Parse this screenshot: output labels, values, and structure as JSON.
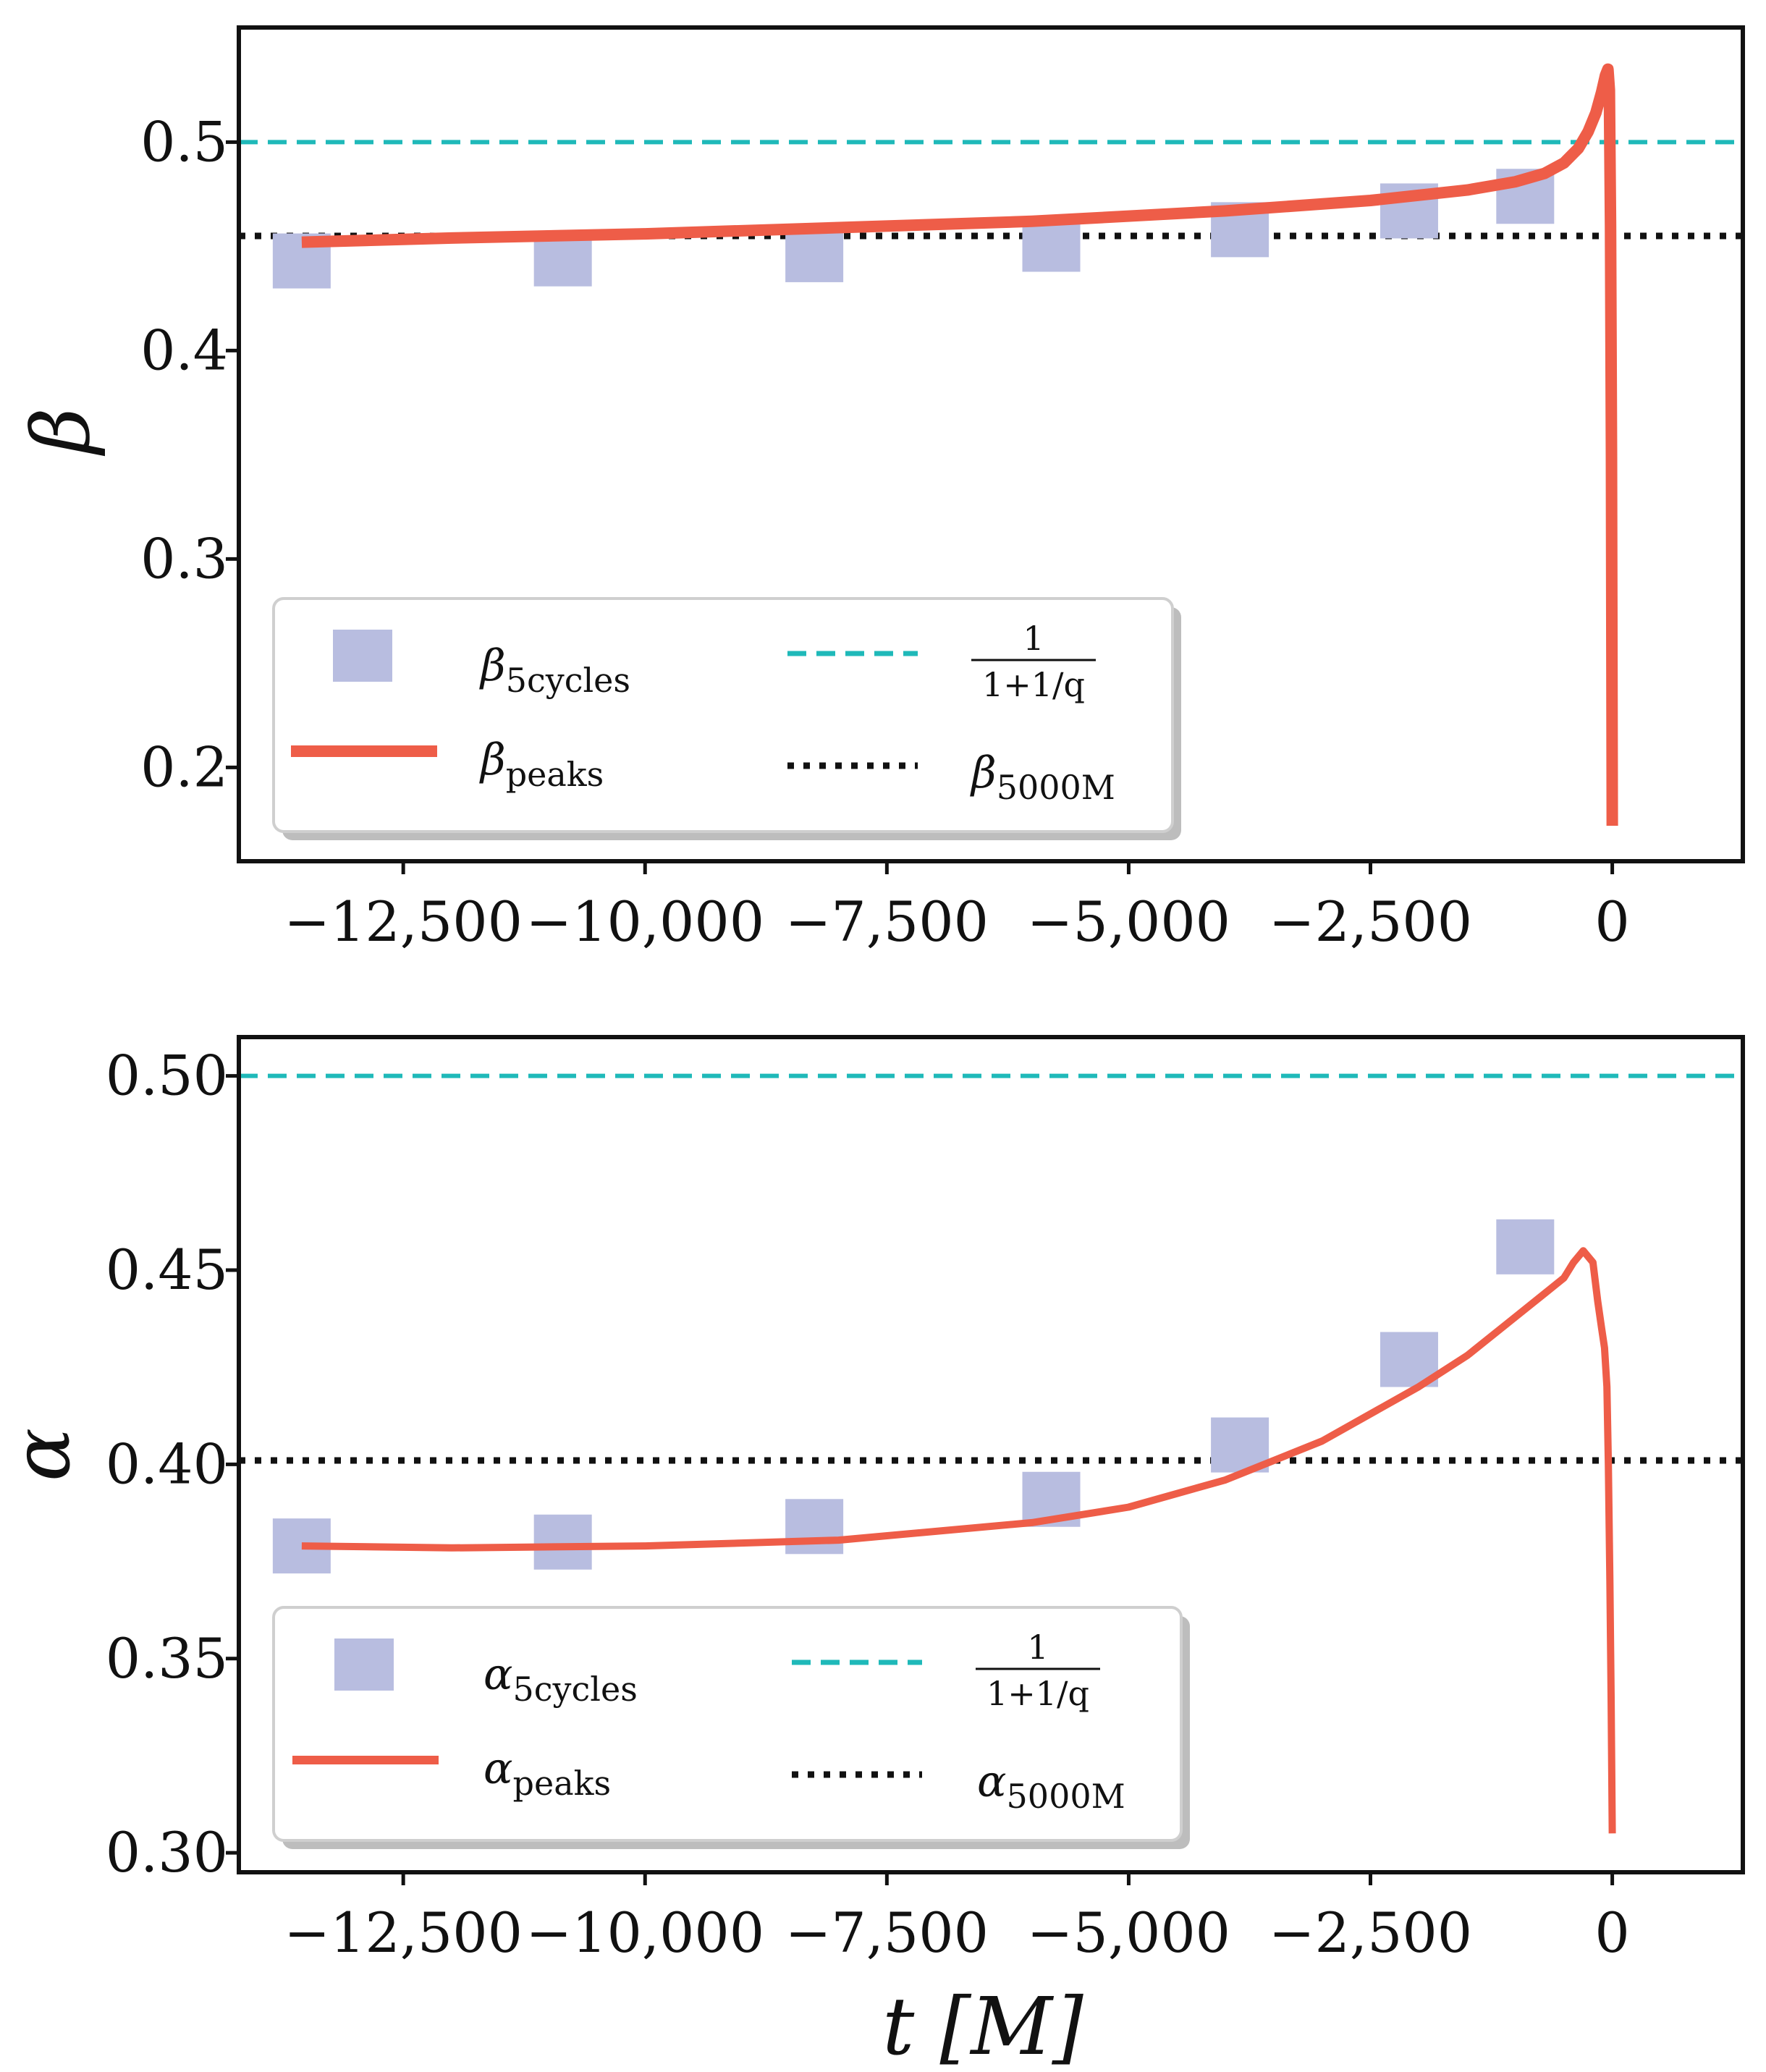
{
  "colors": {
    "series_line": "#ee5d48",
    "series_markers": "#b8bde0",
    "reference_dashed": "#1fb9b9",
    "reference_dotted": "#111111",
    "axes": "#111111",
    "legend_shadow": "#bdbdbd"
  },
  "chart_data": [
    {
      "type": "line",
      "panel": "top",
      "xlabel": "",
      "ylabel": "β",
      "xlim": [
        -14200,
        1350
      ],
      "ylim": [
        0.155,
        0.555
      ],
      "xticks": [
        -12500,
        -10000,
        -7500,
        -5000,
        -2500,
        0
      ],
      "xtick_labels": [
        "−12,500",
        "−10,000",
        "−7,500",
        "−5,000",
        "−2,500",
        "0"
      ],
      "yticks": [
        0.2,
        0.3,
        0.4,
        0.5
      ],
      "ytick_labels": [
        "0.2",
        "0.3",
        "0.4",
        "0.5"
      ],
      "grid": false,
      "legend_placement": "lower-left",
      "legend": [
        {
          "symbol": "β",
          "sub": "5cycles"
        },
        {
          "symbol": "β",
          "sub": "peaks"
        },
        {
          "frac_num": "1",
          "frac_den": "1+1/q"
        },
        {
          "symbol": "β",
          "sub": "5000M"
        }
      ],
      "series": [
        {
          "name": "β_5cycles",
          "kind": "markers",
          "x": [
            -13550,
            -10850,
            -8250,
            -5800,
            -3850,
            -2100,
            -900
          ],
          "y": [
            0.443,
            0.444,
            0.446,
            0.451,
            0.458,
            0.467,
            0.474
          ]
        },
        {
          "name": "β_peaks",
          "kind": "line",
          "x": [
            -13550,
            -12000,
            -10000,
            -8000,
            -6000,
            -4000,
            -2500,
            -1500,
            -1000,
            -700,
            -500,
            -350,
            -250,
            -170,
            -110,
            -70,
            -45,
            -30,
            -18,
            -8,
            0
          ],
          "y": [
            0.452,
            0.454,
            0.456,
            0.459,
            0.462,
            0.467,
            0.472,
            0.477,
            0.481,
            0.485,
            0.49,
            0.497,
            0.505,
            0.514,
            0.524,
            0.532,
            0.535,
            0.525,
            0.46,
            0.35,
            0.172
          ]
        },
        {
          "name": "1/(1+1/q)",
          "kind": "hline",
          "y": 0.5
        },
        {
          "name": "β_5000M",
          "kind": "hline",
          "y": 0.455
        }
      ]
    },
    {
      "type": "line",
      "panel": "bottom",
      "xlabel": "t [M]",
      "ylabel": "α",
      "xlim": [
        -14200,
        1350
      ],
      "ylim": [
        0.295,
        0.51
      ],
      "xticks": [
        -12500,
        -10000,
        -7500,
        -5000,
        -2500,
        0
      ],
      "xtick_labels": [
        "−12,500",
        "−10,000",
        "−7,500",
        "−5,000",
        "−2,500",
        "0"
      ],
      "yticks": [
        0.3,
        0.35,
        0.4,
        0.45,
        0.5
      ],
      "ytick_labels": [
        "0.30",
        "0.35",
        "0.40",
        "0.45",
        "0.50"
      ],
      "grid": false,
      "legend_placement": "lower-left",
      "legend": [
        {
          "symbol": "α",
          "sub": "5cycles"
        },
        {
          "symbol": "α",
          "sub": "peaks"
        },
        {
          "frac_num": "1",
          "frac_den": "1+1/q"
        },
        {
          "symbol": "α",
          "sub": "5000M"
        }
      ],
      "series": [
        {
          "name": "α_5cycles",
          "kind": "markers",
          "x": [
            -13550,
            -10850,
            -8250,
            -5800,
            -3850,
            -2100,
            -900
          ],
          "y": [
            0.379,
            0.38,
            0.384,
            0.391,
            0.405,
            0.427,
            0.456
          ]
        },
        {
          "name": "α_peaks",
          "kind": "line",
          "x": [
            -13550,
            -12000,
            -10000,
            -8000,
            -6000,
            -5000,
            -4000,
            -3000,
            -2000,
            -1500,
            -1000,
            -700,
            -500,
            -400,
            -300,
            -200,
            -150,
            -110,
            -80,
            -55,
            -40,
            -25,
            -12,
            0
          ],
          "y": [
            0.379,
            0.3785,
            0.379,
            0.3805,
            0.385,
            0.389,
            0.396,
            0.406,
            0.42,
            0.428,
            0.438,
            0.444,
            0.448,
            0.452,
            0.455,
            0.452,
            0.442,
            0.435,
            0.43,
            0.42,
            0.4,
            0.37,
            0.34,
            0.305
          ]
        },
        {
          "name": "1/(1+1/q)",
          "kind": "hline",
          "y": 0.5
        },
        {
          "name": "α_5000M",
          "kind": "hline",
          "y": 0.401
        }
      ]
    }
  ]
}
